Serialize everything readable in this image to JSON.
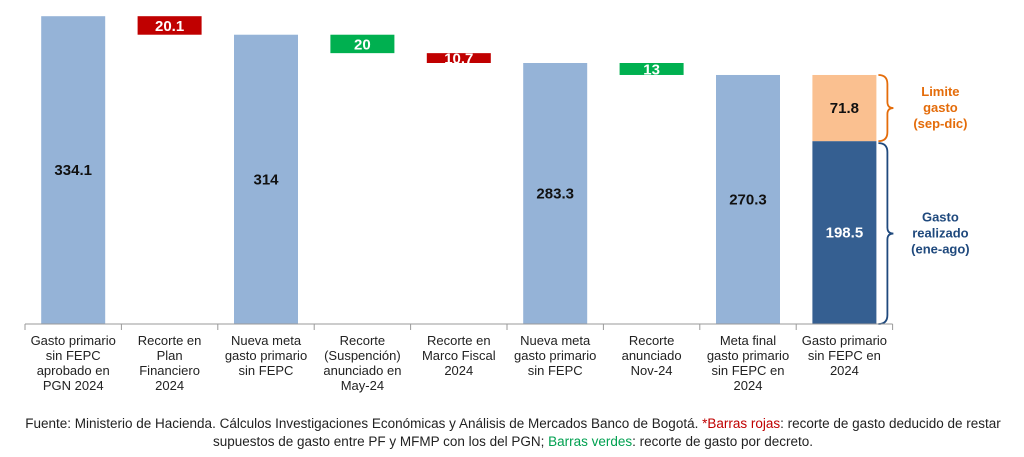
{
  "chart_data": {
    "type": "waterfall",
    "ylim": [
      0,
      343
    ],
    "categories": [
      [
        "Gasto primario",
        "sin FEPC",
        "aprobado en",
        "PGN 2024"
      ],
      [
        "Recorte en",
        "Plan",
        "Financiero",
        "2024"
      ],
      [
        "Nueva meta",
        "gasto primario",
        "sin FEPC"
      ],
      [
        "Recorte",
        "(Suspención)",
        "anunciado en",
        "May-24"
      ],
      [
        "Recorte en",
        "Marco Fiscal",
        "2024"
      ],
      [
        "Nueva meta",
        "gasto primario",
        "sin FEPC"
      ],
      [
        "Recorte",
        "anunciado",
        "Nov-24"
      ],
      [
        "Meta final",
        "gasto primario",
        "sin FEPC en",
        "2024"
      ],
      [
        "Gasto primario",
        "sin FEPC en",
        "2024"
      ]
    ],
    "bars": [
      {
        "kind": "total",
        "base": 0,
        "value": 334.1,
        "label": "334.1",
        "color": "#95b3d7"
      },
      {
        "kind": "decrease",
        "base": 314,
        "value": 20.1,
        "label": "20.1",
        "color": "#c00000"
      },
      {
        "kind": "total",
        "base": 0,
        "value": 314,
        "label": "314",
        "color": "#95b3d7"
      },
      {
        "kind": "decrease",
        "base": 294,
        "value": 20,
        "label": "20",
        "color": "#00b050"
      },
      {
        "kind": "decrease",
        "base": 283.3,
        "value": 10.7,
        "label": "10.7",
        "color": "#c00000"
      },
      {
        "kind": "total",
        "base": 0,
        "value": 283.3,
        "label": "283.3",
        "color": "#95b3d7"
      },
      {
        "kind": "decrease",
        "base": 270.3,
        "value": 13,
        "label": "13",
        "color": "#00b050"
      },
      {
        "kind": "total",
        "base": 0,
        "value": 270.3,
        "label": "270.3",
        "color": "#95b3d7"
      }
    ],
    "stacked": {
      "segments": [
        {
          "name": "Gasto realizado (ene-ago)",
          "value": 198.5,
          "label": "198.5",
          "color": "#355f91"
        },
        {
          "name": "Limite gasto (sep-dic)",
          "value": 71.8,
          "label": "71.8",
          "color": "#fac090"
        }
      ]
    },
    "annotations": [
      {
        "lines": [
          "Limite",
          "gasto",
          "(sep-dic)"
        ],
        "color": "#e46c0a"
      },
      {
        "lines": [
          "Gasto",
          "realizado",
          "(ene-ago)"
        ],
        "color": "#1f497d"
      }
    ]
  },
  "footnote": {
    "source": "Fuente: Ministerio de Hacienda. Cálculos Investigaciones Económicas y Análisis de Mercados Banco de Bogotá. ",
    "star": "*",
    "red_label": "Barras rojas",
    "red_text": ": recorte de gasto deducido de restar supuestos de gasto entre PF y MFMP con los del PGN; ",
    "green_label": "Barras verdes",
    "green_text": ": recorte de gasto por decreto."
  }
}
